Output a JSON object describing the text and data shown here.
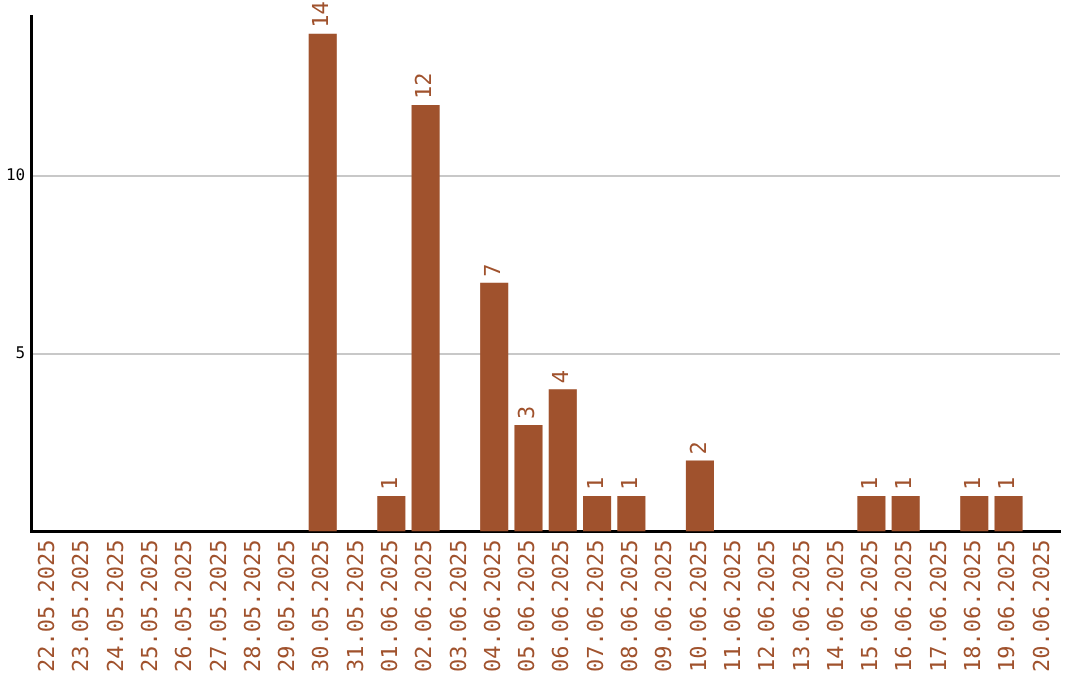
{
  "chart_data": {
    "type": "bar",
    "categories": [
      "22.05.2025",
      "23.05.2025",
      "24.05.2025",
      "25.05.2025",
      "26.05.2025",
      "27.05.2025",
      "28.05.2025",
      "29.05.2025",
      "30.05.2025",
      "31.05.2025",
      "01.06.2025",
      "02.06.2025",
      "03.06.2025",
      "04.06.2025",
      "05.06.2025",
      "06.06.2025",
      "07.06.2025",
      "08.06.2025",
      "09.06.2025",
      "10.06.2025",
      "11.06.2025",
      "12.06.2025",
      "13.06.2025",
      "14.06.2025",
      "15.06.2025",
      "16.06.2025",
      "17.06.2025",
      "18.06.2025",
      "19.06.2025",
      "20.06.2025"
    ],
    "values": [
      0,
      0,
      0,
      0,
      0,
      0,
      0,
      0,
      14,
      0,
      1,
      12,
      0,
      7,
      3,
      4,
      1,
      1,
      0,
      2,
      0,
      0,
      0,
      0,
      1,
      1,
      0,
      1,
      1,
      0
    ],
    "value_labels": [
      null,
      null,
      null,
      null,
      null,
      null,
      null,
      null,
      "14",
      null,
      "1",
      "12",
      null,
      "7",
      "3",
      "4",
      "1",
      "1",
      null,
      "2",
      null,
      null,
      null,
      null,
      "1",
      "1",
      null,
      "1",
      "1",
      null
    ],
    "color": "#a0522d",
    "ylim": [
      0,
      14.5
    ],
    "yticks": [
      5,
      10
    ],
    "grid": "y",
    "legend": false
  }
}
